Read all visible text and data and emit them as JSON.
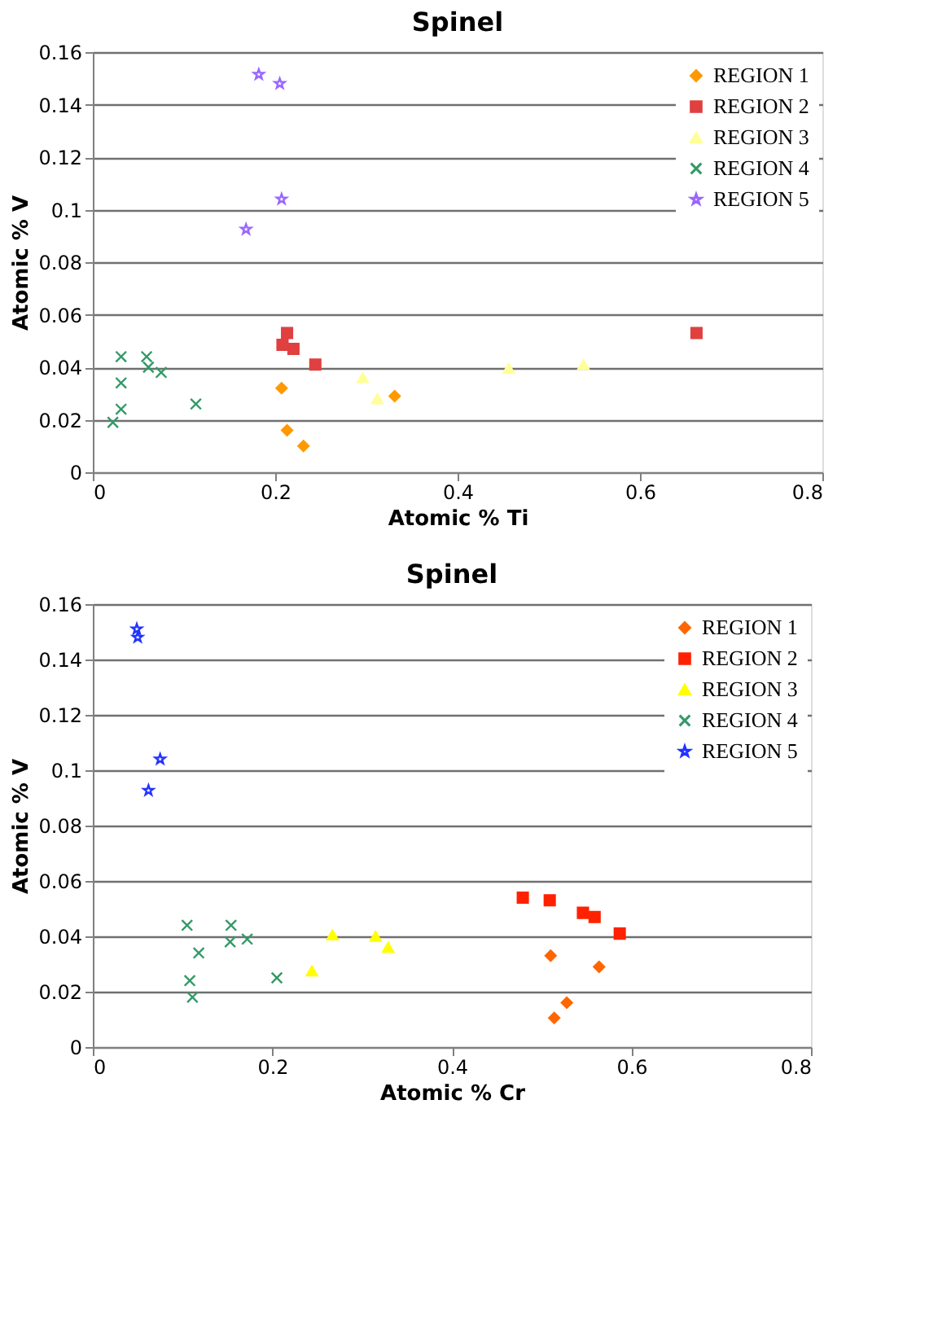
{
  "chart_data": [
    {
      "type": "scatter",
      "title": "Spinel",
      "xlabel": "Atomic % Ti",
      "ylabel": "Atomic % V",
      "xlim": [
        0,
        0.8
      ],
      "xticks": [
        0,
        0.2,
        0.4,
        0.6,
        0.8
      ],
      "ylim": [
        0,
        0.16
      ],
      "yticks": [
        0,
        0.02,
        0.04,
        0.06,
        0.08,
        0.1,
        0.12,
        0.14,
        0.16
      ],
      "grid": "y",
      "legend": "top right",
      "series": [
        {
          "name": "REGION 1",
          "color": "#ff9900",
          "marker": "diamond",
          "x": [
            0.207,
            0.213,
            0.231,
            0.331
          ],
          "values": [
            0.032,
            0.016,
            0.01,
            0.029
          ]
        },
        {
          "name": "REGION 2",
          "color": "#e04040",
          "marker": "square",
          "x": [
            0.213,
            0.208,
            0.22,
            0.244,
            0.662
          ],
          "values": [
            0.053,
            0.0485,
            0.047,
            0.041,
            0.053
          ]
        },
        {
          "name": "REGION 3",
          "color": "#ffff99",
          "marker": "triangle",
          "x": [
            0.296,
            0.312,
            0.456,
            0.538
          ],
          "values": [
            0.036,
            0.028,
            0.0396,
            0.041
          ]
        },
        {
          "name": "REGION 4",
          "color": "#339966",
          "marker": "cross",
          "x": [
            0.031,
            0.031,
            0.031,
            0.022,
            0.059,
            0.061,
            0.075,
            0.113
          ],
          "values": [
            0.044,
            0.034,
            0.024,
            0.019,
            0.044,
            0.04,
            0.038,
            0.026
          ]
        },
        {
          "name": "REGION 5",
          "color": "#9966ff",
          "marker": "star",
          "x": [
            0.182,
            0.205,
            0.207,
            0.168
          ],
          "values": [
            0.1515,
            0.148,
            0.104,
            0.0925
          ]
        }
      ]
    },
    {
      "type": "scatter",
      "title": "Spinel",
      "xlabel": "Atomic % Cr",
      "ylabel": "Atomic % V",
      "xlim": [
        0,
        0.8
      ],
      "xticks": [
        0,
        0.2,
        0.4,
        0.6,
        0.8
      ],
      "ylim": [
        0,
        0.16
      ],
      "yticks": [
        0,
        0.02,
        0.04,
        0.06,
        0.08,
        0.1,
        0.12,
        0.14,
        0.16
      ],
      "grid": "y",
      "legend": "top right",
      "series": [
        {
          "name": "REGION 1",
          "color": "#ff6600",
          "marker": "diamond",
          "x": [
            0.51,
            0.564,
            0.528,
            0.514
          ],
          "values": [
            0.033,
            0.029,
            0.016,
            0.0105
          ]
        },
        {
          "name": "REGION 2",
          "color": "#ff2200",
          "marker": "square",
          "x": [
            0.479,
            0.509,
            0.546,
            0.559,
            0.587
          ],
          "values": [
            0.054,
            0.053,
            0.0485,
            0.047,
            0.041
          ]
        },
        {
          "name": "REGION 3",
          "color": "#ffff00",
          "marker": "triangle",
          "x": [
            0.244,
            0.267,
            0.315,
            0.329
          ],
          "values": [
            0.0275,
            0.0405,
            0.04,
            0.036
          ]
        },
        {
          "name": "REGION 4",
          "color": "#339966",
          "marker": "cross",
          "x": [
            0.105,
            0.118,
            0.108,
            0.111,
            0.154,
            0.153,
            0.172,
            0.205
          ],
          "values": [
            0.044,
            0.034,
            0.024,
            0.018,
            0.044,
            0.038,
            0.039,
            0.025
          ]
        },
        {
          "name": "REGION 5",
          "color": "#2233ff",
          "marker": "star",
          "x": [
            0.049,
            0.05,
            0.075,
            0.062
          ],
          "values": [
            0.151,
            0.148,
            0.104,
            0.0927
          ]
        }
      ]
    }
  ]
}
